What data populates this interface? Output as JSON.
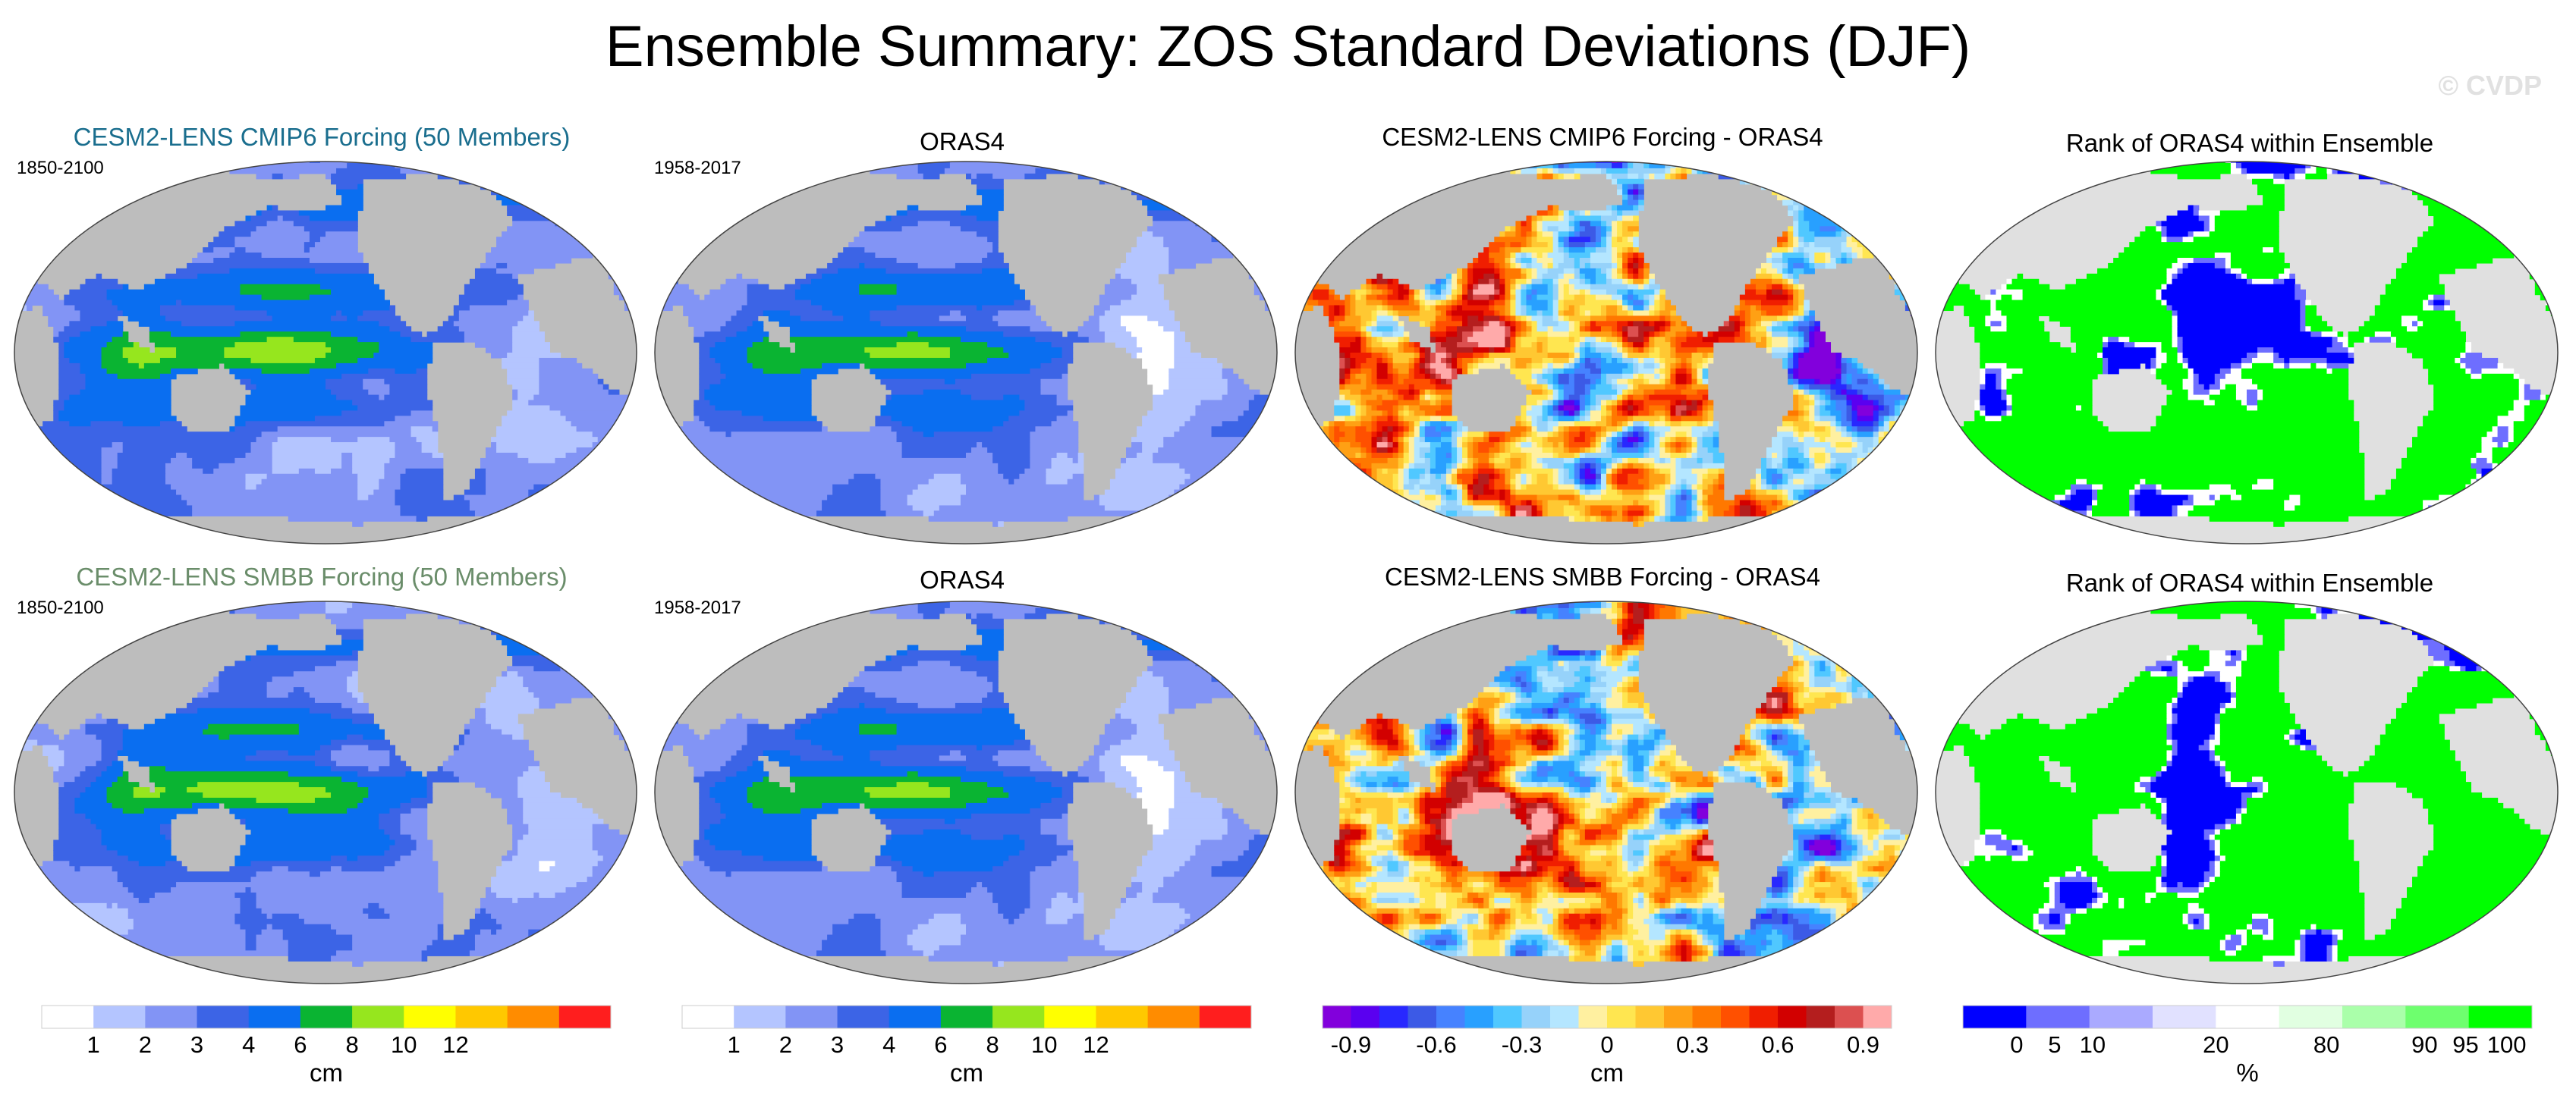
{
  "title": "Ensemble Summary: ZOS Standard Deviations (DJF)",
  "watermark": "© CVDP",
  "colors": {
    "land": "#bdbdbd",
    "ocean_edge": "#444444",
    "model_title_top": "#1a6e8e",
    "model_title_bottom": "#6a8d6a",
    "sd_scale": [
      "#ffffff",
      "#b4c5ff",
      "#8294f5",
      "#3c64e6",
      "#0a6ef0",
      "#0ab432",
      "#96e61e",
      "#ffff00",
      "#ffc800",
      "#ff8c00",
      "#ff1e1e"
    ],
    "diff_scale": [
      "#8200dc",
      "#5a00f0",
      "#2828ff",
      "#3c5ae6",
      "#4682ff",
      "#28a0ff",
      "#50c8ff",
      "#96d2fa",
      "#b4e6ff",
      "#fff0a0",
      "#ffe650",
      "#ffc832",
      "#ffa014",
      "#ff7800",
      "#ff5000",
      "#f01e00",
      "#d20000",
      "#b41e1e",
      "#dc5050",
      "#ffaaaa"
    ],
    "rank_scale": [
      "#0000ff",
      "#6e6eff",
      "#aaaaff",
      "#e1e1ff",
      "#ffffff",
      "#e1ffe1",
      "#aaffaa",
      "#6eff6e",
      "#00ff00"
    ]
  },
  "chart_data": [
    {
      "type": "heatmap",
      "panel": "r1c1",
      "title": "CESM2-LENS CMIP6 Forcing (50 Members)",
      "period": "1850-2100",
      "units": "cm",
      "levels": [
        1,
        2,
        3,
        4,
        6,
        8,
        10,
        12
      ],
      "field": "model_sd"
    },
    {
      "type": "heatmap",
      "panel": "r1c2",
      "title": "ORAS4",
      "period": "1958-2017",
      "units": "cm",
      "levels": [
        1,
        2,
        3,
        4,
        6,
        8,
        10,
        12
      ],
      "field": "obs_sd"
    },
    {
      "type": "heatmap",
      "panel": "r1c3",
      "title": "CESM2-LENS CMIP6 Forcing - ORAS4",
      "units": "cm",
      "levels": [
        -0.9,
        -0.6,
        -0.3,
        0,
        0.3,
        0.6,
        0.9
      ],
      "field": "difference"
    },
    {
      "type": "heatmap",
      "panel": "r1c4",
      "title": "Rank of ORAS4 within Ensemble",
      "units": "%",
      "levels": [
        0,
        5,
        10,
        20,
        80,
        90,
        95,
        100
      ],
      "field": "rank"
    },
    {
      "type": "heatmap",
      "panel": "r2c1",
      "title": "CESM2-LENS SMBB Forcing (50 Members)",
      "period": "1850-2100",
      "units": "cm",
      "levels": [
        1,
        2,
        3,
        4,
        6,
        8,
        10,
        12
      ],
      "field": "model_sd"
    },
    {
      "type": "heatmap",
      "panel": "r2c2",
      "title": "ORAS4",
      "period": "1958-2017",
      "units": "cm",
      "levels": [
        1,
        2,
        3,
        4,
        6,
        8,
        10,
        12
      ],
      "field": "obs_sd"
    },
    {
      "type": "heatmap",
      "panel": "r2c3",
      "title": "CESM2-LENS SMBB Forcing - ORAS4",
      "units": "cm",
      "levels": [
        -0.9,
        -0.6,
        -0.3,
        0,
        0.3,
        0.6,
        0.9
      ],
      "field": "difference"
    },
    {
      "type": "heatmap",
      "panel": "r2c4",
      "title": "Rank of ORAS4 within Ensemble",
      "units": "%",
      "levels": [
        0,
        5,
        10,
        20,
        80,
        90,
        95,
        100
      ],
      "field": "rank"
    }
  ],
  "colorbars": [
    {
      "id": "cb1",
      "units": "cm",
      "labels": [
        "1",
        "2",
        "3",
        "4",
        "6",
        "8",
        "10",
        "12"
      ]
    },
    {
      "id": "cb2",
      "units": "cm",
      "labels": [
        "1",
        "2",
        "3",
        "4",
        "6",
        "8",
        "10",
        "12"
      ]
    },
    {
      "id": "cb3",
      "units": "cm",
      "labels": [
        "-0.9",
        "-0.6",
        "-0.3",
        "0",
        "0.3",
        "0.6",
        "0.9"
      ]
    },
    {
      "id": "cb4",
      "units": "%",
      "labels": [
        "0",
        "5",
        "10",
        "20",
        "80",
        "90",
        "95",
        "100"
      ]
    }
  ]
}
